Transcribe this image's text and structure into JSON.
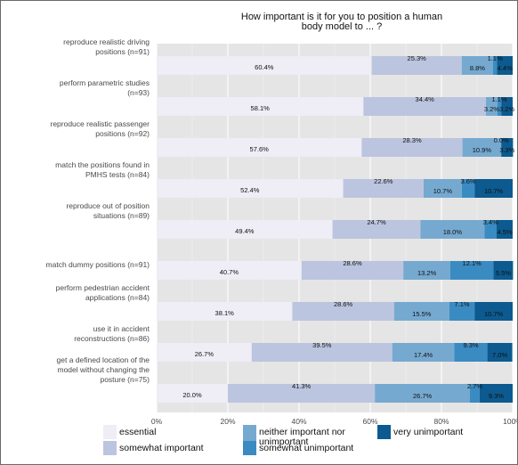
{
  "chart_data": {
    "type": "bar",
    "stacked": true,
    "orientation": "horizontal",
    "title": "How important is it for you to position a human body model to ... ?",
    "title_lines": [
      "How important is it for you to position a human",
      "body model to ... ?"
    ],
    "categories": [
      [
        "reproduce realistic driving",
        "positions (n=91)"
      ],
      [
        "perform parametric studies",
        "(n=93)"
      ],
      [
        "reproduce realistic passenger",
        "positions (n=92)"
      ],
      [
        "match the positions found in",
        "PMHS tests (n=84)"
      ],
      [
        "reproduce out of position",
        "situations (n=89)"
      ],
      [
        "match dummy positions (n=91)"
      ],
      [
        "perform pedestrian accident",
        "applications (n=84)"
      ],
      [
        "use it in accident",
        "reconstructions (n=86)"
      ],
      [
        "get a defined location of the",
        "model without changing the",
        "posture (n=75)"
      ]
    ],
    "xlim": [
      0,
      100
    ],
    "xticks": [
      "0%",
      "20%",
      "40%",
      "60%",
      "80%",
      "100%"
    ],
    "grid": true,
    "legend_position": "bottom",
    "series": [
      {
        "name": "essential",
        "color": "#efedf5",
        "values": [
          60.4,
          58.1,
          57.6,
          52.4,
          49.4,
          40.7,
          38.1,
          26.7,
          20.0
        ],
        "labels": [
          "60.4%",
          "58.1%",
          "57.6%",
          "52.4%",
          "49.4%",
          "40.7%",
          "38.1%",
          "26.7%",
          "20.0%"
        ]
      },
      {
        "name": "somewhat important",
        "color": "#bcc5df",
        "values": [
          25.3,
          34.4,
          28.3,
          22.6,
          24.7,
          28.6,
          28.6,
          39.5,
          41.3
        ],
        "labels": [
          "25.3%",
          "34.4%",
          "28.3%",
          "22.6%",
          "24.7%",
          "28.6%",
          "28.6%",
          "39.5%",
          "41.3%"
        ]
      },
      {
        "name": "neither important nor unimportant",
        "legend_lines": [
          "neither important nor",
          "unimportant"
        ],
        "color": "#76a9d0",
        "values": [
          8.8,
          3.2,
          10.9,
          10.7,
          18.0,
          13.2,
          15.5,
          17.4,
          26.7
        ],
        "labels": [
          "8.8%",
          "3.2%",
          "10.9%",
          "10.7%",
          "18.0%",
          "13.2%",
          "15.5%",
          "17.4%",
          "26.7%"
        ]
      },
      {
        "name": "somewhat unimportant",
        "color": "#3a8bc2",
        "values": [
          1.1,
          1.1,
          0.0,
          3.6,
          3.4,
          12.1,
          7.1,
          9.3,
          2.7
        ],
        "labels": [
          "1.1%",
          "1.1%",
          "0.0%",
          "3.6%",
          "3.4%",
          "12.1%",
          "7.1%",
          "9.3%",
          "2.7%"
        ]
      },
      {
        "name": "very unimportant",
        "color": "#0c5a8f",
        "values": [
          4.4,
          3.2,
          3.3,
          10.7,
          4.5,
          5.5,
          10.7,
          7.0,
          9.3
        ],
        "labels": [
          "4.4%",
          "3.2%",
          "3.3%",
          "10.7%",
          "4.5%",
          "5.5%",
          "10.7%",
          "7.0%",
          "9.3%"
        ]
      }
    ]
  }
}
